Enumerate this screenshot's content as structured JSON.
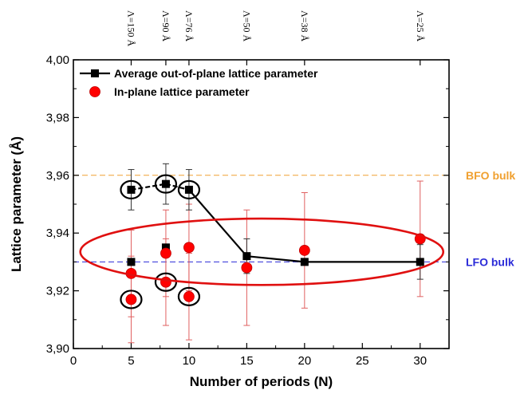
{
  "chart_data": {
    "type": "scatter",
    "xlabel": "Number of periods (N)",
    "ylabel": "Lattice parameter (Å)",
    "xlim": [
      0,
      32.5
    ],
    "ylim": [
      3.9,
      4.0
    ],
    "x_ticks": [
      "0",
      "5",
      "10",
      "15",
      "20",
      "25",
      "30"
    ],
    "x_tick_values": [
      0,
      5,
      10,
      15,
      20,
      25,
      30
    ],
    "y_ticks": [
      "3,90",
      "3,92",
      "3,94",
      "3,96",
      "3,98",
      "4,00"
    ],
    "y_tick_values": [
      3.9,
      3.92,
      3.94,
      3.96,
      3.98,
      4.0
    ],
    "top_axis_labels": [
      {
        "x": 5,
        "label": "Λ=150 Å"
      },
      {
        "x": 8,
        "label": "Λ=90 Å"
      },
      {
        "x": 10,
        "label": "Λ=76 Å"
      },
      {
        "x": 15,
        "label": "Λ=50 Å"
      },
      {
        "x": 20,
        "label": "Λ=38 Å"
      },
      {
        "x": 30,
        "label": "Λ=25 Å"
      }
    ],
    "series": [
      {
        "name": "Average out-of-plane lattice parameter",
        "color": "#000000",
        "marker": "square",
        "points": [
          {
            "x": 5,
            "y": 3.955,
            "err": 0.007
          },
          {
            "x": 8,
            "y": 3.957,
            "err": 0.007
          },
          {
            "x": 10,
            "y": 3.955,
            "err": 0.007
          },
          {
            "x": 15,
            "y": 3.932,
            "err": 0.006
          },
          {
            "x": 20,
            "y": 3.93,
            "err": 0.0
          },
          {
            "x": 30,
            "y": 3.93,
            "err": 0.006
          }
        ],
        "line_path": [
          {
            "x": 5,
            "y": 3.955
          },
          {
            "x": 8,
            "y": 3.957
          },
          {
            "x": 10,
            "y": 3.955
          },
          {
            "x": 15,
            "y": 3.932
          },
          {
            "x": 20,
            "y": 3.93
          },
          {
            "x": 30,
            "y": 3.93
          }
        ],
        "dashed_segment_end_x": 10
      },
      {
        "name": "",
        "color": "#000000",
        "marker": "square",
        "points": [
          {
            "x": 5,
            "y": 3.93
          },
          {
            "x": 8,
            "y": 3.935
          },
          {
            "x": 10,
            "y": 3.935
          }
        ]
      },
      {
        "name": "In-plane lattice parameter",
        "color": "#ff0000",
        "marker": "circle",
        "points": [
          {
            "x": 5,
            "y": 3.926,
            "err": 0.015
          },
          {
            "x": 5,
            "y": 3.917,
            "err": 0.015
          },
          {
            "x": 8,
            "y": 3.933,
            "err": 0.015
          },
          {
            "x": 8,
            "y": 3.923,
            "err": 0.015
          },
          {
            "x": 10,
            "y": 3.935,
            "err": 0.015
          },
          {
            "x": 10,
            "y": 3.918,
            "err": 0.015
          },
          {
            "x": 15,
            "y": 3.928,
            "err": 0.02
          },
          {
            "x": 20,
            "y": 3.934,
            "err": 0.02
          },
          {
            "x": 30,
            "y": 3.938,
            "err": 0.02
          }
        ]
      }
    ],
    "reference_lines": [
      {
        "label": "BFO bulk",
        "y": 3.96,
        "color": "#f0a030"
      },
      {
        "label": "LFO bulk",
        "y": 3.93,
        "color": "#2b2bd8"
      }
    ],
    "highlight_circles": [
      {
        "x": 5,
        "y": 3.955
      },
      {
        "x": 8,
        "y": 3.957
      },
      {
        "x": 10,
        "y": 3.955
      },
      {
        "x": 5,
        "y": 3.917
      },
      {
        "x": 8,
        "y": 3.923
      },
      {
        "x": 10,
        "y": 3.918
      }
    ],
    "highlight_ellipse": {
      "cx": 16.3,
      "cy": 3.9335,
      "rx": 15.7,
      "ry": 0.0115,
      "color": "#e01010"
    },
    "legend": {
      "position": "top-left"
    },
    "grid": false
  }
}
